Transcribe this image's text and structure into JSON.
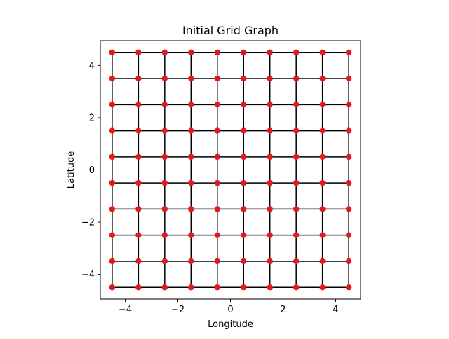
{
  "chart_data": {
    "type": "scatter",
    "title": "Initial Grid Graph",
    "xlabel": "Longitude",
    "ylabel": "Latitude",
    "xlim": [
      -4.95,
      4.95
    ],
    "ylim": [
      -4.95,
      4.95
    ],
    "xticks": [
      {
        "value": -4,
        "label": "−4"
      },
      {
        "value": -2,
        "label": "−2"
      },
      {
        "value": 0,
        "label": "0"
      },
      {
        "value": 2,
        "label": "2"
      },
      {
        "value": 4,
        "label": "4"
      }
    ],
    "yticks": [
      {
        "value": -4,
        "label": "−4"
      },
      {
        "value": -2,
        "label": "−2"
      },
      {
        "value": 0,
        "label": "0"
      },
      {
        "value": 2,
        "label": "2"
      },
      {
        "value": 4,
        "label": "4"
      }
    ],
    "node_x": [
      -4.5,
      -3.5,
      -2.5,
      -1.5,
      -0.5,
      0.5,
      1.5,
      2.5,
      3.5,
      4.5
    ],
    "node_y": [
      -4.5,
      -3.5,
      -2.5,
      -1.5,
      -0.5,
      0.5,
      1.5,
      2.5,
      3.5,
      4.5
    ],
    "edges": "4-neighbour grid connections between adjacent nodes",
    "grid": false,
    "legend": "none",
    "node_color": "#e31a1c",
    "edge_color": "#000000"
  }
}
